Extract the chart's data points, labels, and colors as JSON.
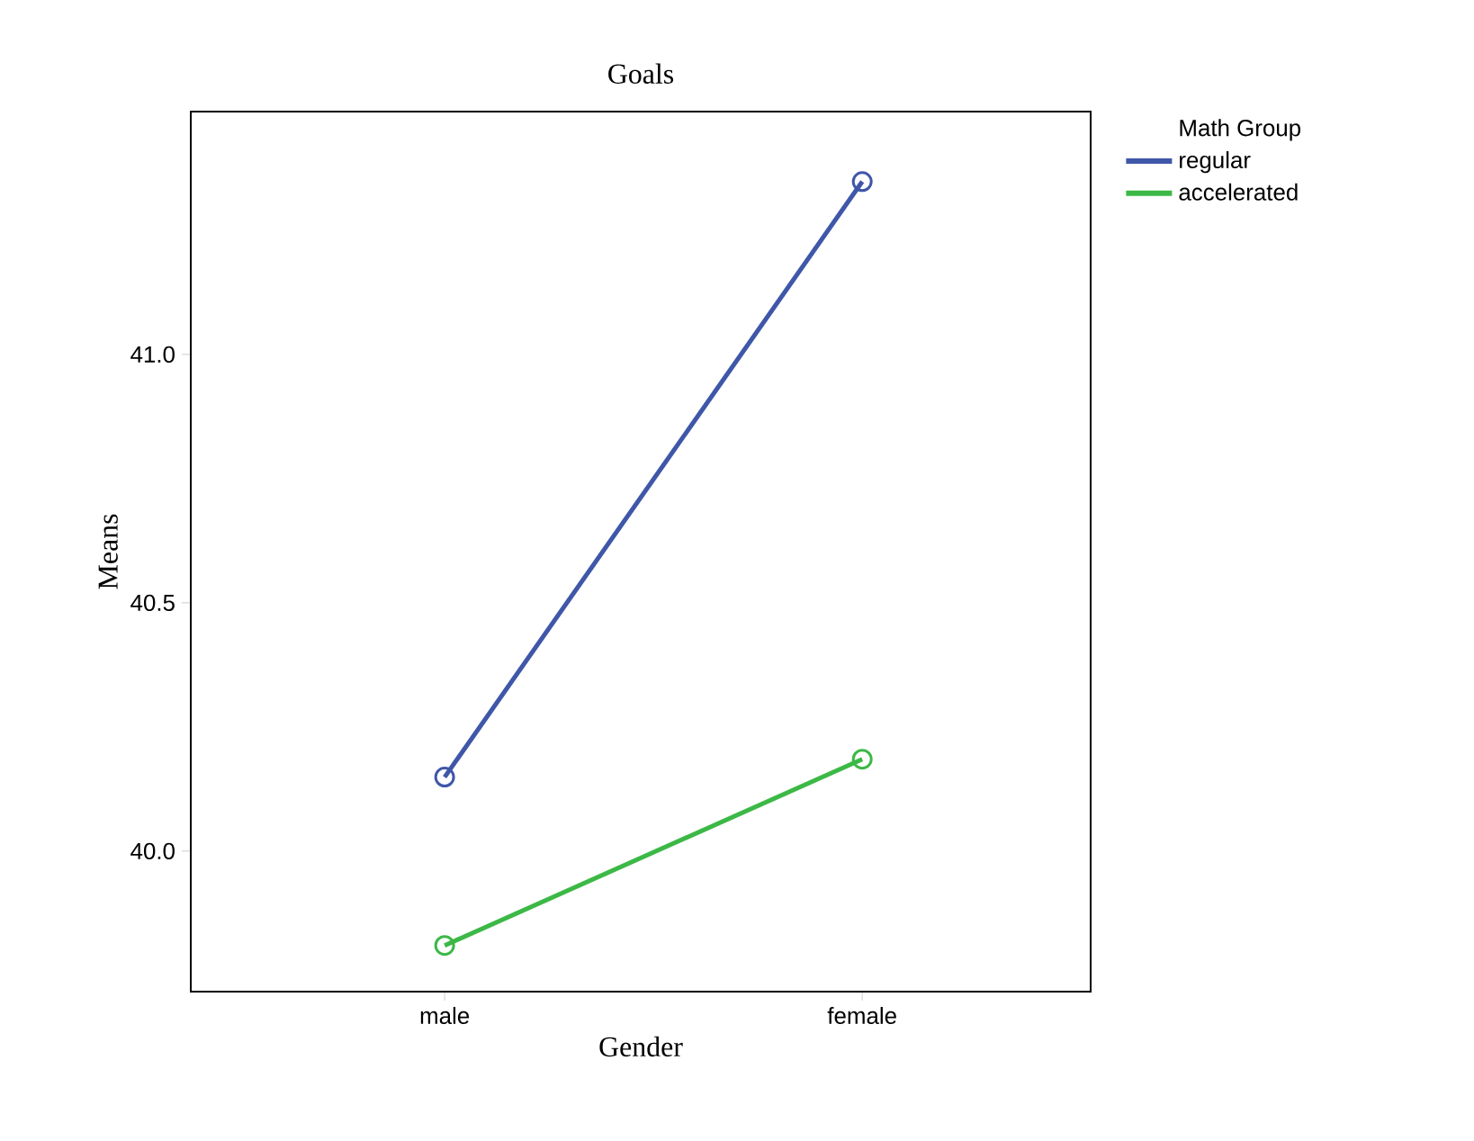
{
  "chart_data": {
    "type": "line",
    "title": "Goals",
    "xlabel": "Gender",
    "ylabel": "Means",
    "legend_title": "Math Group",
    "categories": [
      "male",
      "female"
    ],
    "series": [
      {
        "name": "regular",
        "color": "#3f57a8",
        "values": [
          40.149,
          41.348
        ]
      },
      {
        "name": "accelerated",
        "color": "#3cb846",
        "values": [
          39.81,
          40.185
        ]
      }
    ],
    "ylim": [
      39.717,
      41.489
    ],
    "yticks": [
      {
        "value": 40,
        "label": "40.0"
      },
      {
        "value": 40.5,
        "label": "40.5"
      },
      {
        "value": 41,
        "label": "41.0"
      }
    ],
    "grid": false,
    "legend": "right",
    "marker": "circle",
    "line_style": "solid"
  }
}
